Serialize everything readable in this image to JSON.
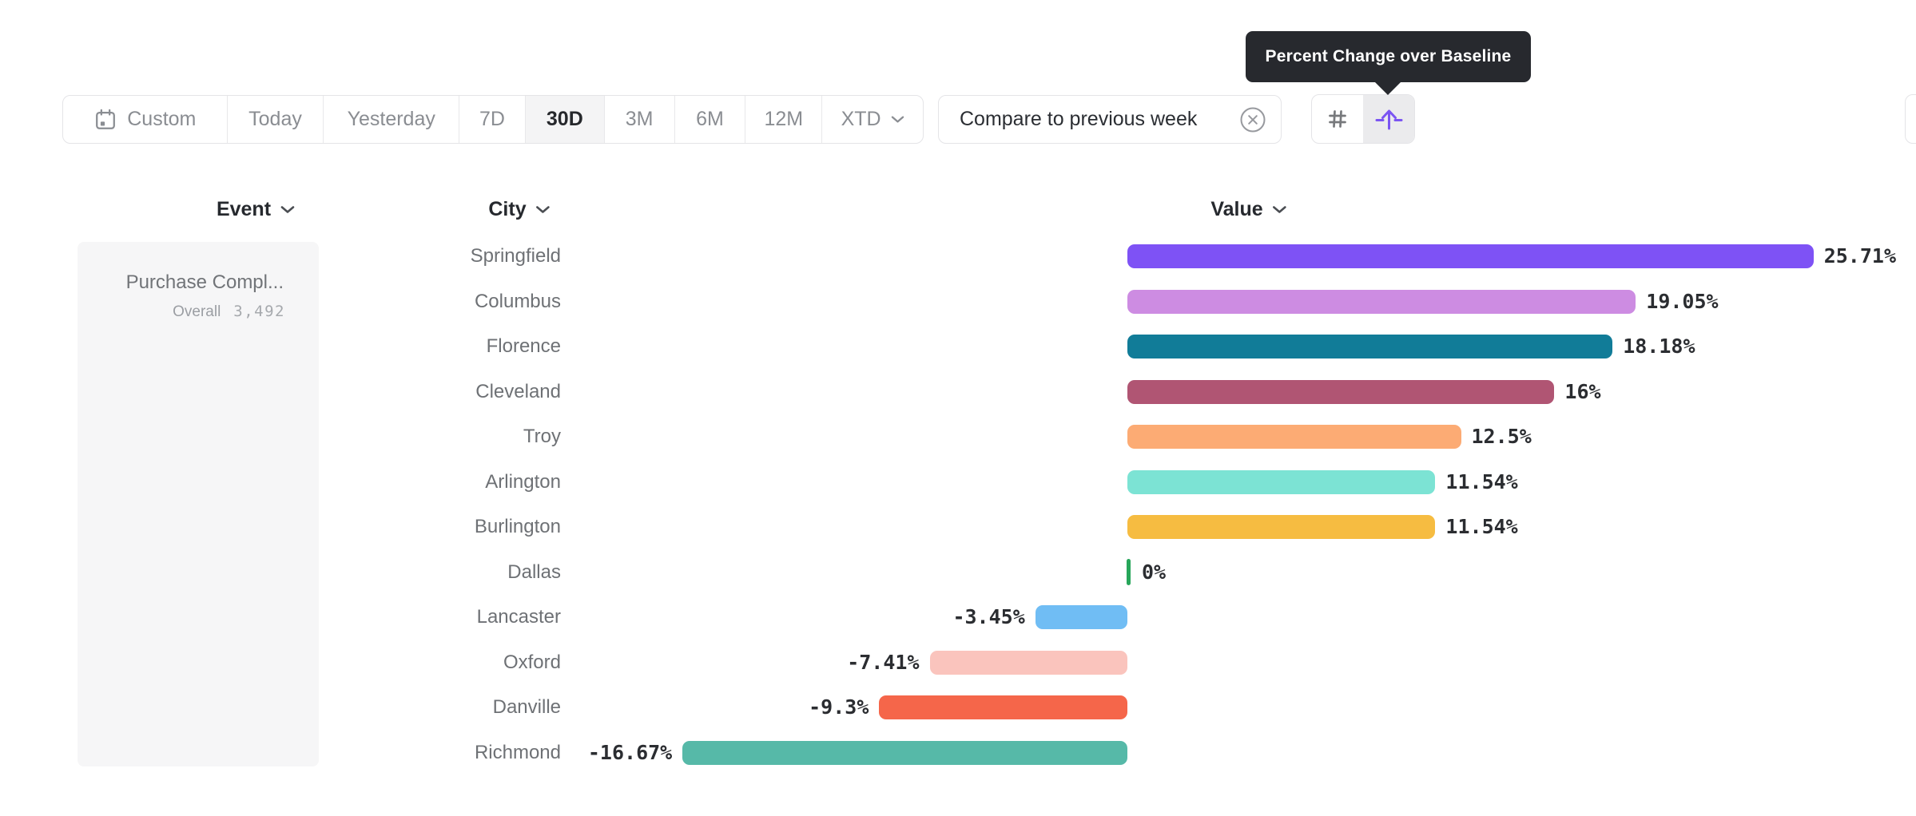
{
  "tooltip": {
    "text": "Percent Change over Baseline"
  },
  "toolbar": {
    "date_ranges": [
      {
        "label": "Custom",
        "selected": false,
        "has_icon": "calendar-icon"
      },
      {
        "label": "Today",
        "selected": false
      },
      {
        "label": "Yesterday",
        "selected": false
      },
      {
        "label": "7D",
        "selected": false
      },
      {
        "label": "30D",
        "selected": true
      },
      {
        "label": "3M",
        "selected": false
      },
      {
        "label": "6M",
        "selected": false
      },
      {
        "label": "12M",
        "selected": false
      },
      {
        "label": "XTD",
        "selected": false,
        "has_icon": "chevron-down-icon"
      }
    ],
    "compare_chip": {
      "label": "Compare to previous week",
      "icon": "circle-x-icon"
    },
    "view_toggle": {
      "left_icon": "hash-icon",
      "right_icon": "percent-change-baseline-icon",
      "selected": "right",
      "accent_color": "#7b55f2",
      "icon_gray": "#77797c"
    }
  },
  "columns": {
    "event": "Event",
    "city": "City",
    "value": "Value"
  },
  "event_panel": {
    "event_name": "Purchase Compl...",
    "overall_label": "Overall",
    "overall_value": "3,492"
  },
  "chart_data": {
    "type": "bar",
    "orientation": "horizontal",
    "title": "Percent Change over Baseline",
    "unit": "%",
    "baseline": 0,
    "categories": [
      "Springfield",
      "Columbus",
      "Florence",
      "Cleveland",
      "Troy",
      "Arlington",
      "Burlington",
      "Dallas",
      "Lancaster",
      "Oxford",
      "Danville",
      "Richmond"
    ],
    "values": [
      25.71,
      19.05,
      18.18,
      16,
      12.5,
      11.54,
      11.54,
      0,
      -3.45,
      -7.41,
      -9.3,
      -16.67
    ],
    "labels": [
      "25.71%",
      "19.05%",
      "18.18%",
      "16%",
      "12.5%",
      "11.54%",
      "11.54%",
      "0%",
      "-3.45%",
      "-7.41%",
      "-9.3%",
      "-16.67%"
    ],
    "colors": [
      "#7e52f5",
      "#cd8ce2",
      "#117c98",
      "#b05573",
      "#fcab74",
      "#7ce3d4",
      "#f6bc41",
      "#27a65a",
      "#70bdf4",
      "#fac4bd",
      "#f5664a",
      "#56b9a8"
    ],
    "zero_tick_color": "#27a65a",
    "value_label_color": "#2b2d31"
  }
}
